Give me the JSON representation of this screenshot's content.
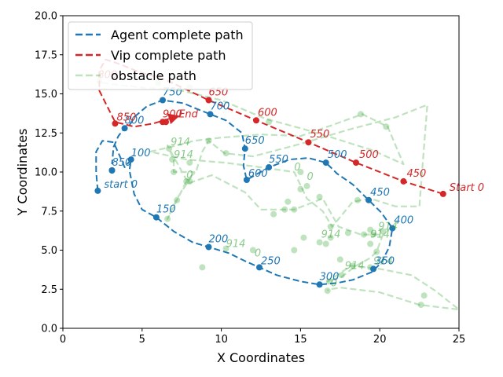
{
  "chart_data": {
    "type": "line",
    "xlabel": "X Coordinates",
    "ylabel": "Y Coordinates",
    "xlim": [
      0,
      25
    ],
    "ylim": [
      0,
      20
    ],
    "x_ticks": [
      "0",
      "5",
      "10",
      "15",
      "20",
      "25"
    ],
    "y_ticks": [
      "0.0",
      "2.5",
      "5.0",
      "7.5",
      "10.0",
      "12.5",
      "15.0",
      "17.5",
      "20.0"
    ],
    "grid": false,
    "legend_position": "top-left",
    "colors": {
      "agent": "#1f77b4",
      "vip": "#d62728",
      "obstacle": "#2ca02c"
    },
    "series": [
      {
        "name": "Agent complete path",
        "style": "dashed",
        "path": [
          [
            2.2,
            8.8
          ],
          [
            2.1,
            10.0
          ],
          [
            2.1,
            11.3
          ],
          [
            2.5,
            12.0
          ],
          [
            3.2,
            11.9
          ],
          [
            3.6,
            11.0
          ],
          [
            3.9,
            10.3
          ],
          [
            4.3,
            10.8
          ],
          [
            4.2,
            10.1
          ],
          [
            4.5,
            8.6
          ],
          [
            5.0,
            7.6
          ],
          [
            5.9,
            7.1
          ],
          [
            7.0,
            6.2
          ],
          [
            8.2,
            5.5
          ],
          [
            9.2,
            5.2
          ],
          [
            10.5,
            4.8
          ],
          [
            11.5,
            4.3
          ],
          [
            12.4,
            3.9
          ],
          [
            13.5,
            3.4
          ],
          [
            15.0,
            3.0
          ],
          [
            16.2,
            2.8
          ],
          [
            17.3,
            2.9
          ],
          [
            18.3,
            3.1
          ],
          [
            19.5,
            3.6
          ],
          [
            20.1,
            4.2
          ],
          [
            20.6,
            5.2
          ],
          [
            20.8,
            6.4
          ],
          [
            20.1,
            7.4
          ],
          [
            19.3,
            8.2
          ],
          [
            18.3,
            9.2
          ],
          [
            17.3,
            9.9
          ],
          [
            16.6,
            10.6
          ],
          [
            15.5,
            10.9
          ],
          [
            14.3,
            10.8
          ],
          [
            13.0,
            10.3
          ],
          [
            12.3,
            9.9
          ],
          [
            11.6,
            9.5
          ],
          [
            11.4,
            10.4
          ],
          [
            11.5,
            11.5
          ],
          [
            11.3,
            12.5
          ],
          [
            10.3,
            13.3
          ],
          [
            9.3,
            13.7
          ],
          [
            8.3,
            14.1
          ],
          [
            7.6,
            14.4
          ],
          [
            6.3,
            14.6
          ],
          [
            5.3,
            14.2
          ],
          [
            4.6,
            13.6
          ],
          [
            4.2,
            13.0
          ],
          [
            3.9,
            12.8
          ],
          [
            3.5,
            12.3
          ],
          [
            3.2,
            11.6
          ],
          [
            3.1,
            10.5
          ]
        ],
        "points": [
          [
            2.2,
            8.8
          ],
          [
            3.1,
            10.1
          ],
          [
            4.3,
            10.8
          ],
          [
            5.9,
            7.1
          ],
          [
            9.2,
            5.2
          ],
          [
            12.4,
            3.9
          ],
          [
            16.2,
            2.8
          ],
          [
            19.6,
            3.8
          ],
          [
            20.8,
            6.4
          ],
          [
            19.3,
            8.2
          ],
          [
            16.6,
            10.6
          ],
          [
            13.0,
            10.3
          ],
          [
            11.6,
            9.5
          ],
          [
            11.5,
            11.5
          ],
          [
            9.3,
            13.7
          ],
          [
            6.3,
            14.6
          ],
          [
            3.9,
            12.8
          ],
          [
            3.1,
            10.1
          ]
        ],
        "labels": [
          {
            "text": "start 0",
            "x": 2.6,
            "y": 9.0
          },
          {
            "text": "100",
            "x": 4.3,
            "y": 11.0
          },
          {
            "text": "150",
            "x": 5.9,
            "y": 7.4
          },
          {
            "text": "200",
            "x": 9.2,
            "y": 5.5
          },
          {
            "text": "250",
            "x": 12.5,
            "y": 4.1
          },
          {
            "text": "300",
            "x": 16.2,
            "y": 3.1
          },
          {
            "text": "350",
            "x": 19.7,
            "y": 4.1
          },
          {
            "text": "400",
            "x": 20.9,
            "y": 6.7
          },
          {
            "text": "450",
            "x": 19.4,
            "y": 8.5
          },
          {
            "text": "500",
            "x": 16.7,
            "y": 10.9
          },
          {
            "text": "550",
            "x": 13.0,
            "y": 10.6
          },
          {
            "text": "600",
            "x": 11.7,
            "y": 9.7
          },
          {
            "text": "650",
            "x": 11.5,
            "y": 11.8
          },
          {
            "text": "700",
            "x": 9.3,
            "y": 14.0
          },
          {
            "text": "750",
            "x": 6.3,
            "y": 14.9
          },
          {
            "text": "800",
            "x": 3.9,
            "y": 13.1
          },
          {
            "text": "850",
            "x": 3.1,
            "y": 10.4
          }
        ]
      },
      {
        "name": "Vip complete path",
        "style": "dashed",
        "path": [
          [
            24.0,
            8.6
          ],
          [
            21.5,
            9.4
          ],
          [
            18.5,
            10.6
          ],
          [
            15.5,
            11.9
          ],
          [
            12.2,
            13.3
          ],
          [
            9.2,
            14.6
          ],
          [
            6.5,
            15.9
          ],
          [
            4.8,
            16.4
          ],
          [
            3.6,
            16.9
          ],
          [
            2.7,
            17.2
          ],
          [
            2.3,
            16.5
          ],
          [
            2.3,
            15.2
          ],
          [
            2.8,
            14.2
          ],
          [
            3.3,
            13.2
          ],
          [
            4.5,
            12.9
          ],
          [
            5.7,
            13.1
          ],
          [
            6.7,
            13.4
          ]
        ],
        "points": [
          [
            24.0,
            8.6
          ],
          [
            21.5,
            9.4
          ],
          [
            18.5,
            10.6
          ],
          [
            15.5,
            11.9
          ],
          [
            12.2,
            13.3
          ],
          [
            9.2,
            14.6
          ],
          [
            3.3,
            13.1
          ],
          [
            6.3,
            13.2
          ],
          [
            6.5,
            13.2
          ]
        ],
        "labels": [
          {
            "text": "Start 0",
            "x": 24.4,
            "y": 8.8
          },
          {
            "text": "450",
            "x": 21.7,
            "y": 9.7
          },
          {
            "text": "500",
            "x": 18.7,
            "y": 10.9
          },
          {
            "text": "550",
            "x": 15.6,
            "y": 12.2
          },
          {
            "text": "600",
            "x": 12.3,
            "y": 13.6
          },
          {
            "text": "650",
            "x": 9.2,
            "y": 14.9
          },
          {
            "text": "800",
            "x": 2.2,
            "y": 16.0
          },
          {
            "text": "850",
            "x": 3.4,
            "y": 13.3
          },
          {
            "text": "900",
            "x": 6.3,
            "y": 13.5
          },
          {
            "text": "End",
            "x": 7.3,
            "y": 13.5
          }
        ]
      },
      {
        "name": "obstacle path",
        "style": "dashed",
        "path": [
          [
            2.5,
            15.7
          ],
          [
            5.0,
            15.4
          ],
          [
            7.5,
            15.2
          ],
          [
            10.0,
            14.6
          ],
          [
            12.8,
            13.4
          ],
          [
            15.0,
            12.8
          ],
          [
            17.0,
            12.2
          ],
          [
            19.5,
            11.4
          ],
          [
            21.5,
            10.5
          ],
          [
            20.5,
            12.9
          ],
          [
            18.9,
            13.7
          ],
          [
            17.0,
            13.0
          ],
          [
            15.0,
            12.3
          ],
          [
            12.5,
            12.4
          ],
          [
            10.0,
            12.2
          ],
          [
            8.3,
            12.0
          ],
          [
            6.8,
            11.6
          ],
          [
            5.5,
            11.3
          ],
          [
            7.8,
            10.8
          ],
          [
            10.2,
            10.6
          ],
          [
            12.5,
            10.3
          ],
          [
            14.6,
            10.0
          ],
          [
            15.4,
            8.3
          ],
          [
            16.4,
            7.5
          ],
          [
            17.0,
            6.5
          ],
          [
            18.3,
            8.1
          ],
          [
            19.4,
            8.3
          ],
          [
            21.0,
            7.8
          ],
          [
            22.5,
            7.8
          ],
          [
            23.0,
            14.3
          ],
          [
            21.0,
            13.5
          ],
          [
            18.0,
            12.7
          ],
          [
            15.0,
            11.8
          ],
          [
            12.0,
            11.0
          ],
          [
            10.2,
            11.2
          ],
          [
            9.2,
            12.0
          ],
          [
            8.8,
            11.3
          ],
          [
            8.4,
            10.0
          ],
          [
            7.8,
            9.5
          ],
          [
            6.6,
            11.7
          ],
          [
            7.0,
            10.8
          ],
          [
            7.0,
            10.0
          ],
          [
            8.3,
            10.0
          ],
          [
            7.2,
            8.3
          ],
          [
            6.6,
            7.0
          ],
          [
            7.8,
            9.4
          ],
          [
            8.0,
            9.3
          ],
          [
            9.4,
            9.8
          ],
          [
            11.5,
            8.7
          ],
          [
            12.5,
            7.6
          ],
          [
            14.6,
            7.6
          ],
          [
            16.4,
            8.3
          ],
          [
            17.4,
            6.5
          ],
          [
            18.8,
            6.0
          ],
          [
            19.6,
            6.0
          ],
          [
            20.2,
            6.0
          ],
          [
            19.8,
            4.9
          ],
          [
            19.4,
            4.5
          ],
          [
            18.5,
            4.0
          ],
          [
            17.6,
            3.3
          ],
          [
            16.7,
            3.0
          ],
          [
            18.2,
            4.0
          ],
          [
            20.0,
            3.8
          ],
          [
            22.0,
            3.4
          ],
          [
            23.5,
            2.4
          ],
          [
            25.0,
            1.2
          ],
          [
            22.5,
            1.5
          ],
          [
            20.0,
            2.3
          ],
          [
            17.6,
            2.6
          ],
          [
            16.8,
            2.5
          ],
          [
            16.7,
            2.4
          ]
        ],
        "points": [
          [
            2.3,
            15.8
          ],
          [
            6.0,
            15.7
          ],
          [
            8.0,
            15.4
          ],
          [
            15.0,
            10.0
          ],
          [
            16.2,
            8.4
          ],
          [
            16.9,
            6.5
          ],
          [
            14.6,
            7.6
          ],
          [
            14.0,
            7.6
          ],
          [
            13.3,
            7.3
          ],
          [
            16.6,
            5.4
          ],
          [
            16.2,
            5.5
          ],
          [
            17.5,
            4.4
          ],
          [
            18.3,
            4.0
          ],
          [
            19.0,
            6.0
          ],
          [
            19.6,
            6.0
          ],
          [
            19.8,
            4.9
          ],
          [
            19.4,
            5.4
          ],
          [
            18.6,
            8.2
          ],
          [
            18.8,
            13.7
          ],
          [
            20.4,
            12.9
          ],
          [
            13.0,
            13.2
          ],
          [
            9.2,
            12.0
          ],
          [
            10.3,
            11.2
          ],
          [
            8.0,
            10.6
          ],
          [
            6.7,
            11.5
          ],
          [
            6.9,
            10.8
          ],
          [
            7.0,
            10.0
          ],
          [
            8.0,
            9.4
          ],
          [
            7.8,
            9.4
          ],
          [
            7.2,
            8.2
          ],
          [
            6.6,
            7.0
          ],
          [
            12.0,
            5.0
          ],
          [
            14.6,
            5.0
          ],
          [
            15.2,
            5.8
          ],
          [
            16.8,
            3.0
          ],
          [
            17.6,
            3.4
          ],
          [
            16.7,
            2.4
          ],
          [
            19.4,
            3.9
          ],
          [
            22.6,
            1.5
          ],
          [
            22.8,
            2.1
          ],
          [
            8.8,
            3.9
          ],
          [
            10.3,
            5.1
          ],
          [
            14.2,
            8.1
          ],
          [
            15.0,
            8.9
          ],
          [
            15.4,
            9.1
          ],
          [
            18.0,
            6.1
          ],
          [
            19.4,
            6.3
          ],
          [
            20.2,
            6.2
          ],
          [
            16.9,
            5.8
          ]
        ],
        "labels": [
          {
            "text": "914",
            "x": 6.8,
            "y": 11.7
          },
          {
            "text": "914",
            "x": 7.0,
            "y": 10.9
          },
          {
            "text": "0",
            "x": 7.8,
            "y": 9.6
          },
          {
            "text": "0",
            "x": 14.6,
            "y": 10.1
          },
          {
            "text": "0",
            "x": 15.4,
            "y": 9.5
          },
          {
            "text": "914",
            "x": 10.3,
            "y": 5.2
          },
          {
            "text": "0",
            "x": 12.1,
            "y": 4.6
          },
          {
            "text": "914",
            "x": 16.3,
            "y": 5.8
          },
          {
            "text": "914",
            "x": 17.8,
            "y": 3.8
          },
          {
            "text": "0",
            "x": 16.9,
            "y": 2.7
          },
          {
            "text": "914",
            "x": 19.9,
            "y": 6.3
          },
          {
            "text": "914",
            "x": 19.4,
            "y": 5.8
          },
          {
            "text": "914",
            "x": 19.6,
            "y": 4.1
          }
        ]
      }
    ]
  }
}
